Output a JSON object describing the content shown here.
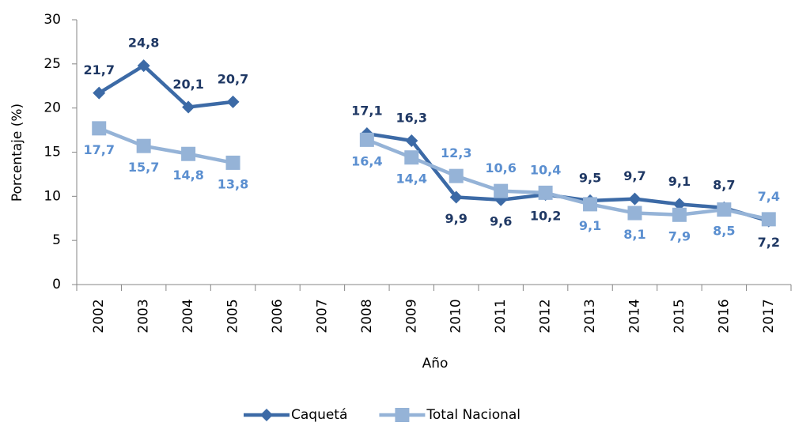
{
  "chart_data": {
    "type": "line",
    "x_label": "Año",
    "y_label": "Porcentaje (%)",
    "categories": [
      "2002",
      "2003",
      "2004",
      "2005",
      "2006",
      "2007",
      "2008",
      "2009",
      "2010",
      "2011",
      "2012",
      "2013",
      "2014",
      "2015",
      "2016",
      "2017"
    ],
    "series": [
      {
        "name": "Caquetá",
        "color": "#3c6aa6",
        "marker": "diamond",
        "values": [
          21.7,
          24.8,
          20.1,
          20.7,
          null,
          null,
          17.1,
          16.3,
          9.9,
          9.6,
          10.2,
          9.5,
          9.7,
          9.1,
          8.7,
          7.2
        ],
        "value_labels": [
          "21,7",
          "24,8",
          "20,1",
          "20,7",
          null,
          null,
          "17,1",
          "16,3",
          "9,9",
          "9,6",
          "10,2",
          "9,5",
          "9,7",
          "9,1",
          "8,7",
          "7,2"
        ]
      },
      {
        "name": "Total Nacional",
        "color": "#95b3d7",
        "marker": "square",
        "values": [
          17.7,
          15.7,
          14.8,
          13.8,
          null,
          null,
          16.4,
          14.4,
          12.3,
          10.6,
          10.4,
          9.1,
          8.1,
          7.9,
          8.5,
          7.4
        ],
        "value_labels": [
          "17,7",
          "15,7",
          "14,8",
          "13,8",
          null,
          null,
          "16,4",
          "14,4",
          "12,3",
          "10,6",
          "10,4",
          "9,1",
          "8,1",
          "7,9",
          "8,5",
          "7,4"
        ]
      }
    ],
    "ylim": [
      0,
      30
    ],
    "yticks": [
      0,
      5,
      10,
      15,
      20,
      25,
      30
    ],
    "grid": false,
    "legend": "bottom"
  }
}
